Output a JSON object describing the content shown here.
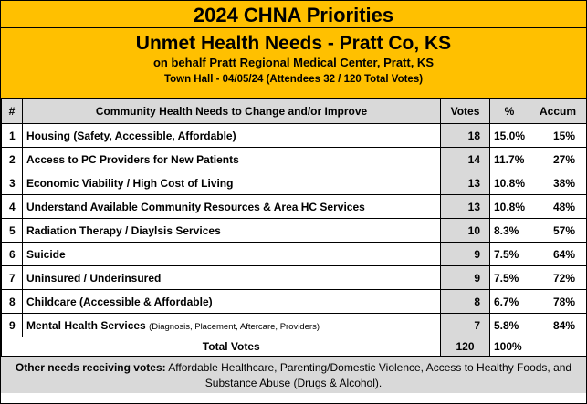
{
  "header": {
    "title": "2024 CHNA Priorities",
    "subtitle": "Unmet Health Needs - Pratt Co, KS",
    "behalf": "on behalf Pratt Regional Medical Center, Pratt, KS",
    "town_hall": "Town Hall - 04/05/24  (Attendees 32 / 120 Total Votes)"
  },
  "columns": {
    "num": "#",
    "need": "Community Health Needs to Change and/or Improve",
    "votes": "Votes",
    "pct": "%",
    "accum": "Accum"
  },
  "rows": [
    {
      "num": "1",
      "need": "Housing (Safety, Accessible, Affordable)",
      "note": "",
      "votes": "18",
      "pct": "15.0%",
      "accum": "15%"
    },
    {
      "num": "2",
      "need": "Access to PC Providers for New Patients",
      "note": "",
      "votes": "14",
      "pct": "11.7%",
      "accum": "27%"
    },
    {
      "num": "3",
      "need": "Economic Viability / High Cost of Living",
      "note": "",
      "votes": "13",
      "pct": "10.8%",
      "accum": "38%"
    },
    {
      "num": "4",
      "need": "Understand Available Community Resources & Area HC Services",
      "note": "",
      "votes": "13",
      "pct": "10.8%",
      "accum": "48%"
    },
    {
      "num": "5",
      "need": "Radiation Therapy / Diaylsis Services",
      "note": "",
      "votes": "10",
      "pct": "8.3%",
      "accum": "57%"
    },
    {
      "num": "6",
      "need": "Suicide",
      "note": "",
      "votes": "9",
      "pct": "7.5%",
      "accum": "64%"
    },
    {
      "num": "7",
      "need": "Uninsured / Underinsured",
      "note": "",
      "votes": "9",
      "pct": "7.5%",
      "accum": "72%"
    },
    {
      "num": "8",
      "need": "Childcare (Accessible & Affordable)",
      "note": "",
      "votes": "8",
      "pct": "6.7%",
      "accum": "78%"
    },
    {
      "num": "9",
      "need": "Mental Health Services",
      "note": "(Diagnosis, Placement, Aftercare, Providers)",
      "votes": "7",
      "pct": "5.8%",
      "accum": "84%"
    }
  ],
  "total": {
    "label": "Total Votes",
    "votes": "120",
    "pct": "100%"
  },
  "footer": {
    "label": "Other needs receiving votes:",
    "text": " Affordable Healthcare, Parenting/Domestic Violence, Access to Healthy Foods, and Substance Abuse (Drugs & Alcohol)."
  }
}
